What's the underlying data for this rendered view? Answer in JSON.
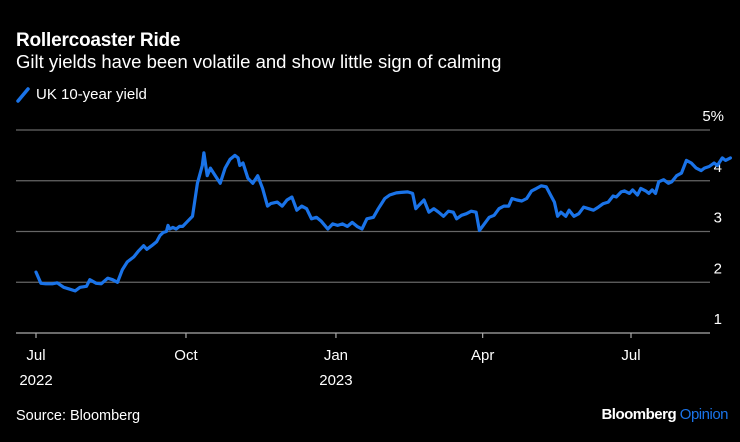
{
  "header": {
    "title": "Rollercoaster Ride",
    "subtitle": "Gilt yields have been volatile and show little sign of calming"
  },
  "footer": {
    "source": "Source: Bloomberg",
    "brand_main": "Bloomberg",
    "brand_accent": "Opinion"
  },
  "colors": {
    "background": "#000000",
    "series": "#1a73e8",
    "gridline": "#666666",
    "text": "#ffffff"
  },
  "chart_data": {
    "type": "line",
    "title": "Rollercoaster Ride",
    "subtitle": "Gilt yields have been volatile and show little sign of calming",
    "xlabel": "",
    "ylabel": "",
    "ylim": [
      1,
      5
    ],
    "yticks": [
      {
        "value": 5,
        "label": "5%"
      },
      {
        "value": 4,
        "label": "4"
      },
      {
        "value": 3,
        "label": "3"
      },
      {
        "value": 2,
        "label": "2"
      },
      {
        "value": 1,
        "label": "1"
      }
    ],
    "xlim": [
      "2022-07-01",
      "2023-08-31"
    ],
    "xticks": [
      {
        "date": "2022-07-01",
        "label": "Jul",
        "sublabel": "2022"
      },
      {
        "date": "2022-10-01",
        "label": "Oct",
        "sublabel": ""
      },
      {
        "date": "2023-01-01",
        "label": "Jan",
        "sublabel": "2023"
      },
      {
        "date": "2023-04-01",
        "label": "Apr",
        "sublabel": ""
      },
      {
        "date": "2023-07-01",
        "label": "Jul",
        "sublabel": ""
      }
    ],
    "grid": true,
    "legend_position": "top-left",
    "series": [
      {
        "name": "UK 10-year yield",
        "points": [
          [
            "2022-07-01",
            2.2
          ],
          [
            "2022-07-04",
            1.98
          ],
          [
            "2022-07-07",
            1.97
          ],
          [
            "2022-07-11",
            1.97
          ],
          [
            "2022-07-14",
            1.99
          ],
          [
            "2022-07-18",
            1.9
          ],
          [
            "2022-07-21",
            1.87
          ],
          [
            "2022-07-25",
            1.83
          ],
          [
            "2022-07-28",
            1.9
          ],
          [
            "2022-08-01",
            1.92
          ],
          [
            "2022-08-03",
            2.05
          ],
          [
            "2022-08-07",
            1.98
          ],
          [
            "2022-08-10",
            1.97
          ],
          [
            "2022-08-14",
            2.08
          ],
          [
            "2022-08-17",
            2.05
          ],
          [
            "2022-08-20",
            2.0
          ],
          [
            "2022-08-23",
            2.25
          ],
          [
            "2022-08-26",
            2.4
          ],
          [
            "2022-08-30",
            2.5
          ],
          [
            "2022-09-02",
            2.62
          ],
          [
            "2022-09-05",
            2.72
          ],
          [
            "2022-09-07",
            2.65
          ],
          [
            "2022-09-10",
            2.72
          ],
          [
            "2022-09-13",
            2.8
          ],
          [
            "2022-09-15",
            2.92
          ],
          [
            "2022-09-17",
            2.98
          ],
          [
            "2022-09-19",
            3.0
          ],
          [
            "2022-09-20",
            3.12
          ],
          [
            "2022-09-21",
            3.05
          ],
          [
            "2022-09-23",
            3.08
          ],
          [
            "2022-09-25",
            3.05
          ],
          [
            "2022-09-27",
            3.1
          ],
          [
            "2022-09-29",
            3.1
          ],
          [
            "2022-10-02",
            3.2
          ],
          [
            "2022-10-05",
            3.3
          ],
          [
            "2022-10-08",
            3.95
          ],
          [
            "2022-10-11",
            4.3
          ],
          [
            "2022-10-12",
            4.55
          ],
          [
            "2022-10-14",
            4.1
          ],
          [
            "2022-10-16",
            4.25
          ],
          [
            "2022-10-19",
            4.1
          ],
          [
            "2022-10-22",
            3.95
          ],
          [
            "2022-10-25",
            4.25
          ],
          [
            "2022-10-28",
            4.42
          ],
          [
            "2022-10-31",
            4.5
          ],
          [
            "2022-11-02",
            4.45
          ],
          [
            "2022-11-03",
            4.3
          ],
          [
            "2022-11-05",
            4.35
          ],
          [
            "2022-11-08",
            4.05
          ],
          [
            "2022-11-11",
            3.95
          ],
          [
            "2022-11-14",
            4.1
          ],
          [
            "2022-11-17",
            3.85
          ],
          [
            "2022-11-20",
            3.5
          ],
          [
            "2022-11-22",
            3.55
          ],
          [
            "2022-11-26",
            3.58
          ],
          [
            "2022-11-29",
            3.5
          ],
          [
            "2022-12-02",
            3.62
          ],
          [
            "2022-12-05",
            3.68
          ],
          [
            "2022-12-08",
            3.42
          ],
          [
            "2022-12-11",
            3.5
          ],
          [
            "2022-12-14",
            3.45
          ],
          [
            "2022-12-17",
            3.25
          ],
          [
            "2022-12-20",
            3.28
          ],
          [
            "2022-12-23",
            3.2
          ],
          [
            "2022-12-27",
            3.05
          ],
          [
            "2022-12-30",
            3.15
          ],
          [
            "2023-01-02",
            3.12
          ],
          [
            "2023-01-05",
            3.15
          ],
          [
            "2023-01-08",
            3.1
          ],
          [
            "2023-01-11",
            3.18
          ],
          [
            "2023-01-14",
            3.1
          ],
          [
            "2023-01-17",
            3.05
          ],
          [
            "2023-01-20",
            3.25
          ],
          [
            "2023-01-24",
            3.28
          ],
          [
            "2023-01-27",
            3.45
          ],
          [
            "2023-01-31",
            3.65
          ],
          [
            "2023-02-03",
            3.72
          ],
          [
            "2023-02-07",
            3.76
          ],
          [
            "2023-02-10",
            3.77
          ],
          [
            "2023-02-14",
            3.78
          ],
          [
            "2023-02-17",
            3.75
          ],
          [
            "2023-02-19",
            3.45
          ],
          [
            "2023-02-21",
            3.52
          ],
          [
            "2023-02-24",
            3.62
          ],
          [
            "2023-02-27",
            3.38
          ],
          [
            "2023-03-02",
            3.45
          ],
          [
            "2023-03-05",
            3.38
          ],
          [
            "2023-03-08",
            3.3
          ],
          [
            "2023-03-11",
            3.4
          ],
          [
            "2023-03-14",
            3.38
          ],
          [
            "2023-03-16",
            3.25
          ],
          [
            "2023-03-19",
            3.32
          ],
          [
            "2023-03-22",
            3.35
          ],
          [
            "2023-03-25",
            3.4
          ],
          [
            "2023-03-28",
            3.38
          ],
          [
            "2023-03-30",
            3.02
          ],
          [
            "2023-04-02",
            3.15
          ],
          [
            "2023-04-05",
            3.28
          ],
          [
            "2023-04-08",
            3.32
          ],
          [
            "2023-04-11",
            3.45
          ],
          [
            "2023-04-14",
            3.5
          ],
          [
            "2023-04-17",
            3.5
          ],
          [
            "2023-04-19",
            3.65
          ],
          [
            "2023-04-22",
            3.62
          ],
          [
            "2023-04-25",
            3.6
          ],
          [
            "2023-04-28",
            3.65
          ],
          [
            "2023-05-01",
            3.8
          ],
          [
            "2023-05-04",
            3.85
          ],
          [
            "2023-05-07",
            3.9
          ],
          [
            "2023-05-10",
            3.88
          ],
          [
            "2023-05-13",
            3.7
          ],
          [
            "2023-05-15",
            3.58
          ],
          [
            "2023-05-17",
            3.3
          ],
          [
            "2023-05-19",
            3.38
          ],
          [
            "2023-05-22",
            3.3
          ],
          [
            "2023-05-24",
            3.42
          ],
          [
            "2023-05-27",
            3.3
          ],
          [
            "2023-05-30",
            3.35
          ],
          [
            "2023-06-02",
            3.48
          ],
          [
            "2023-06-05",
            3.45
          ],
          [
            "2023-06-08",
            3.42
          ],
          [
            "2023-06-11",
            3.48
          ],
          [
            "2023-06-14",
            3.55
          ],
          [
            "2023-06-17",
            3.58
          ],
          [
            "2023-06-20",
            3.7
          ],
          [
            "2023-06-22",
            3.68
          ],
          [
            "2023-06-25",
            3.78
          ],
          [
            "2023-06-27",
            3.8
          ],
          [
            "2023-06-30",
            3.75
          ],
          [
            "2023-07-02",
            3.82
          ],
          [
            "2023-07-05",
            3.72
          ],
          [
            "2023-07-07",
            3.85
          ],
          [
            "2023-07-10",
            3.8
          ],
          [
            "2023-07-12",
            3.75
          ],
          [
            "2023-07-14",
            3.82
          ],
          [
            "2023-07-16",
            3.75
          ],
          [
            "2023-07-18",
            3.98
          ],
          [
            "2023-07-21",
            4.02
          ],
          [
            "2023-07-24",
            3.95
          ],
          [
            "2023-07-26",
            3.98
          ],
          [
            "2023-07-29",
            4.1
          ],
          [
            "2023-08-01",
            4.15
          ],
          [
            "2023-08-04",
            4.4
          ],
          [
            "2023-08-07",
            4.35
          ],
          [
            "2023-08-10",
            4.25
          ],
          [
            "2023-08-13",
            4.2
          ],
          [
            "2023-08-15",
            4.25
          ],
          [
            "2023-08-18",
            4.28
          ],
          [
            "2023-08-21",
            4.35
          ],
          [
            "2023-08-23",
            4.3
          ],
          [
            "2023-08-26",
            4.45
          ],
          [
            "2023-08-28",
            4.4
          ],
          [
            "2023-08-31",
            4.45
          ]
        ]
      }
    ]
  }
}
